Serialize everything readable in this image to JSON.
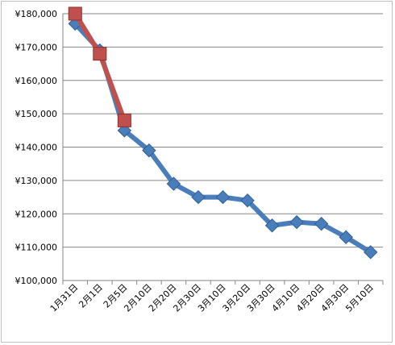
{
  "chart_data": {
    "type": "line",
    "title": "",
    "xlabel": "",
    "ylabel": "",
    "categories": [
      "1月31日",
      "2月1日",
      "2月5日",
      "2月10日",
      "2月20日",
      "2月30日",
      "3月10日",
      "3月20日",
      "3月30日",
      "4月10日",
      "4月20日",
      "4月30日",
      "5月10日"
    ],
    "ylim": [
      100000,
      180000
    ],
    "y_ticks": [
      100000,
      110000,
      120000,
      130000,
      140000,
      150000,
      160000,
      170000,
      180000
    ],
    "y_tick_labels": [
      "¥100,000",
      "¥110,000",
      "¥120,000",
      "¥130,000",
      "¥140,000",
      "¥150,000",
      "¥160,000",
      "¥170,000",
      "¥180,000"
    ],
    "grid": "horizontal",
    "legend": "none",
    "series": [
      {
        "color": "#4a7ebb",
        "marker": "diamond",
        "values": [
          177000,
          169000,
          145000,
          139000,
          129000,
          125000,
          125000,
          124000,
          116500,
          117500,
          117000,
          113000,
          108500
        ]
      },
      {
        "color": "#c0504d",
        "marker": "square",
        "values": [
          180000,
          168000,
          148000,
          null,
          null,
          null,
          null,
          null,
          null,
          null,
          null,
          null,
          null
        ]
      }
    ]
  }
}
